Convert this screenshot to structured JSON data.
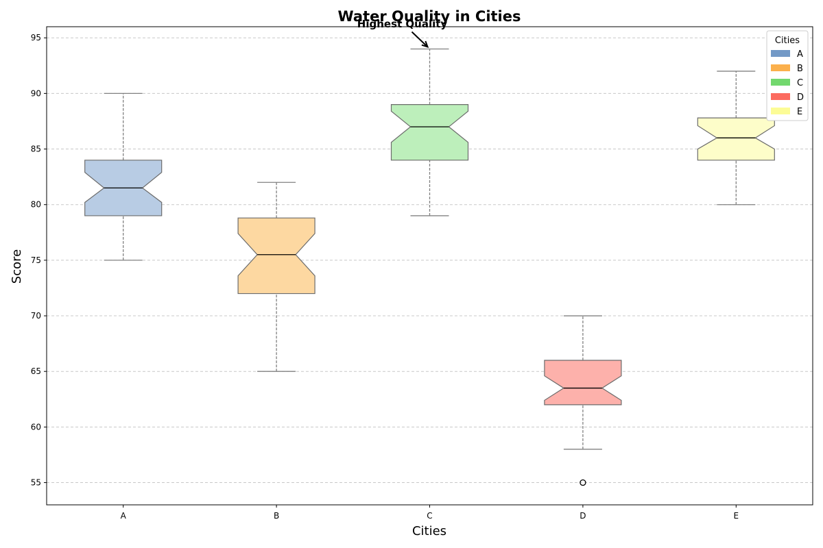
{
  "chart_data": {
    "type": "boxplot",
    "title": "Water Quality in Cities",
    "xlabel": "Cities",
    "ylabel": "Score",
    "ylim": [
      53,
      96
    ],
    "yticks": [
      55,
      60,
      65,
      70,
      75,
      80,
      85,
      90,
      95
    ],
    "grid": "y-dashed",
    "categories": [
      "A",
      "B",
      "C",
      "D",
      "E"
    ],
    "boxes": [
      {
        "name": "A",
        "whisker_low": 75,
        "q1": 79,
        "median": 81.5,
        "q3": 84,
        "whisker_high": 90,
        "notch_low": 80.2,
        "notch_high": 82.9,
        "outliers": [],
        "color": "#b8cce4",
        "legend_color": "#7399c6"
      },
      {
        "name": "B",
        "whisker_low": 65,
        "q1": 72,
        "median": 75.5,
        "q3": 78.8,
        "whisker_high": 82,
        "notch_low": 73.6,
        "notch_high": 77.4,
        "outliers": [],
        "color": "#fdd8a1",
        "legend_color": "#fbb04c"
      },
      {
        "name": "C",
        "whisker_low": 79,
        "q1": 84,
        "median": 87,
        "q3": 89,
        "whisker_high": 94,
        "notch_low": 85.6,
        "notch_high": 88.4,
        "outliers": [],
        "color": "#bdefbb",
        "legend_color": "#72d86e"
      },
      {
        "name": "D",
        "whisker_low": 58,
        "q1": 62,
        "median": 63.5,
        "q3": 66,
        "whisker_high": 70,
        "notch_low": 62.4,
        "notch_high": 64.6,
        "outliers": [
          55
        ],
        "color": "#fdb1ab",
        "legend_color": "#fc6b5f"
      },
      {
        "name": "E",
        "whisker_low": 80,
        "q1": 84,
        "median": 86,
        "q3": 87.8,
        "whisker_high": 92,
        "notch_low": 85,
        "notch_high": 87.1,
        "outliers": [],
        "color": "#fdfdc9",
        "legend_color": "#fcfc96"
      }
    ],
    "annotation": {
      "text": "Highest Quality",
      "target_category": "C",
      "target_value": 94
    },
    "legend": {
      "title": "Cities",
      "position": "top-right",
      "items": [
        "A",
        "B",
        "C",
        "D",
        "E"
      ]
    }
  }
}
